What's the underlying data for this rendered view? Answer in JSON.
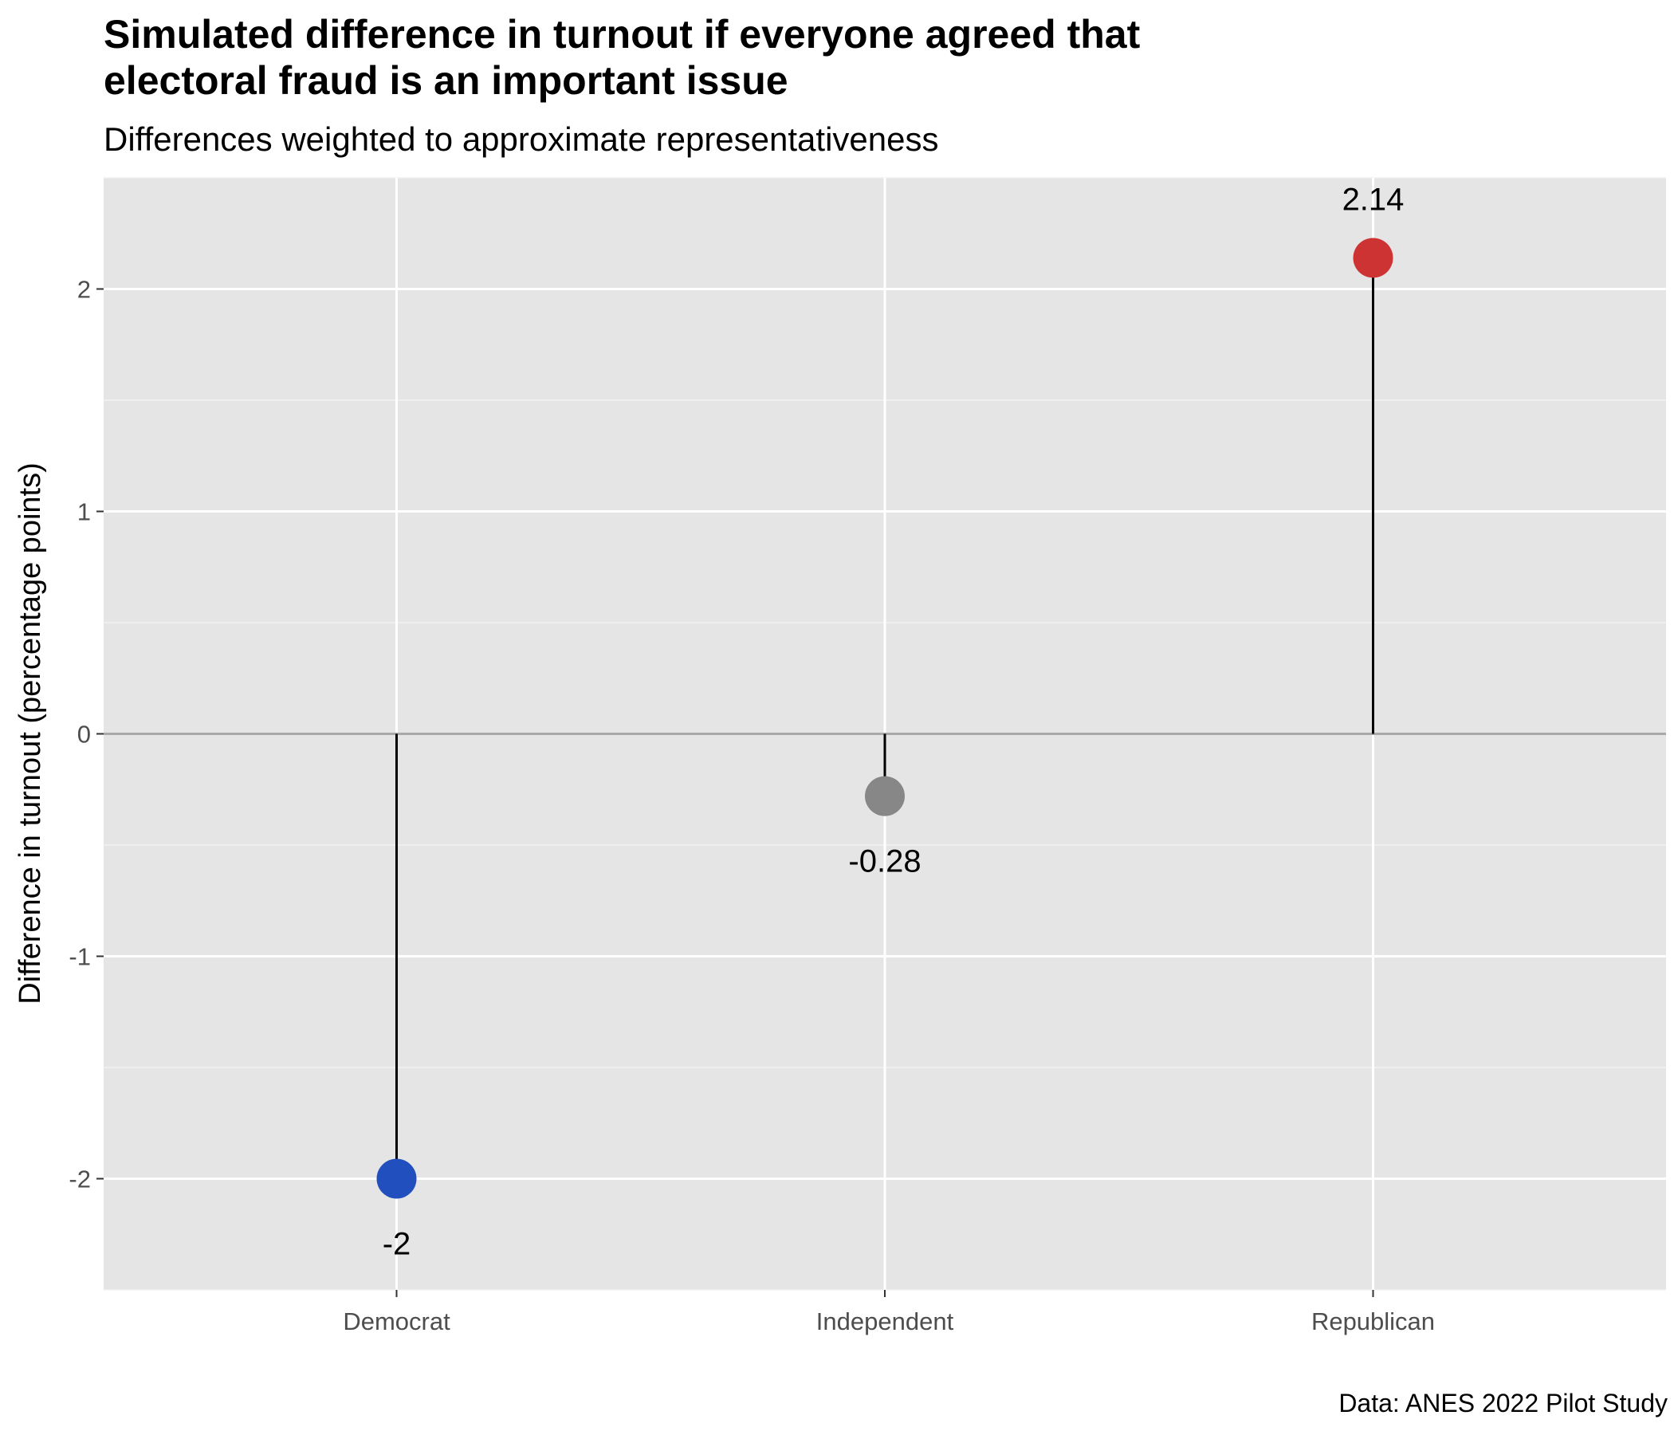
{
  "title_lines": [
    "Simulated difference in turnout if everyone agreed that",
    "electoral fraud is an important issue"
  ],
  "subtitle": "Differences weighted to approximate representativeness",
  "caption": "Data: ANES 2022 Pilot Study",
  "chart_data": {
    "type": "lollipop",
    "categories": [
      "Democrat",
      "Independent",
      "Republican"
    ],
    "values": [
      -2,
      -0.28,
      2.14
    ],
    "labels": [
      "-2",
      "-0.28",
      "2.14"
    ],
    "colors": [
      "#2150be",
      "#878787",
      "#cd3333"
    ],
    "ylabel": "Difference in turnout (percentage points)",
    "xlabel": "",
    "ylim": [
      -2.5,
      2.5
    ],
    "yticks": [
      -2,
      -1,
      0,
      1,
      2
    ],
    "ytick_labels": [
      "-2",
      "-1",
      "0",
      "1",
      "2"
    ],
    "grid": true,
    "zero_line": true,
    "panel_color": "#e5e5e5",
    "stem_color": "#000000"
  }
}
